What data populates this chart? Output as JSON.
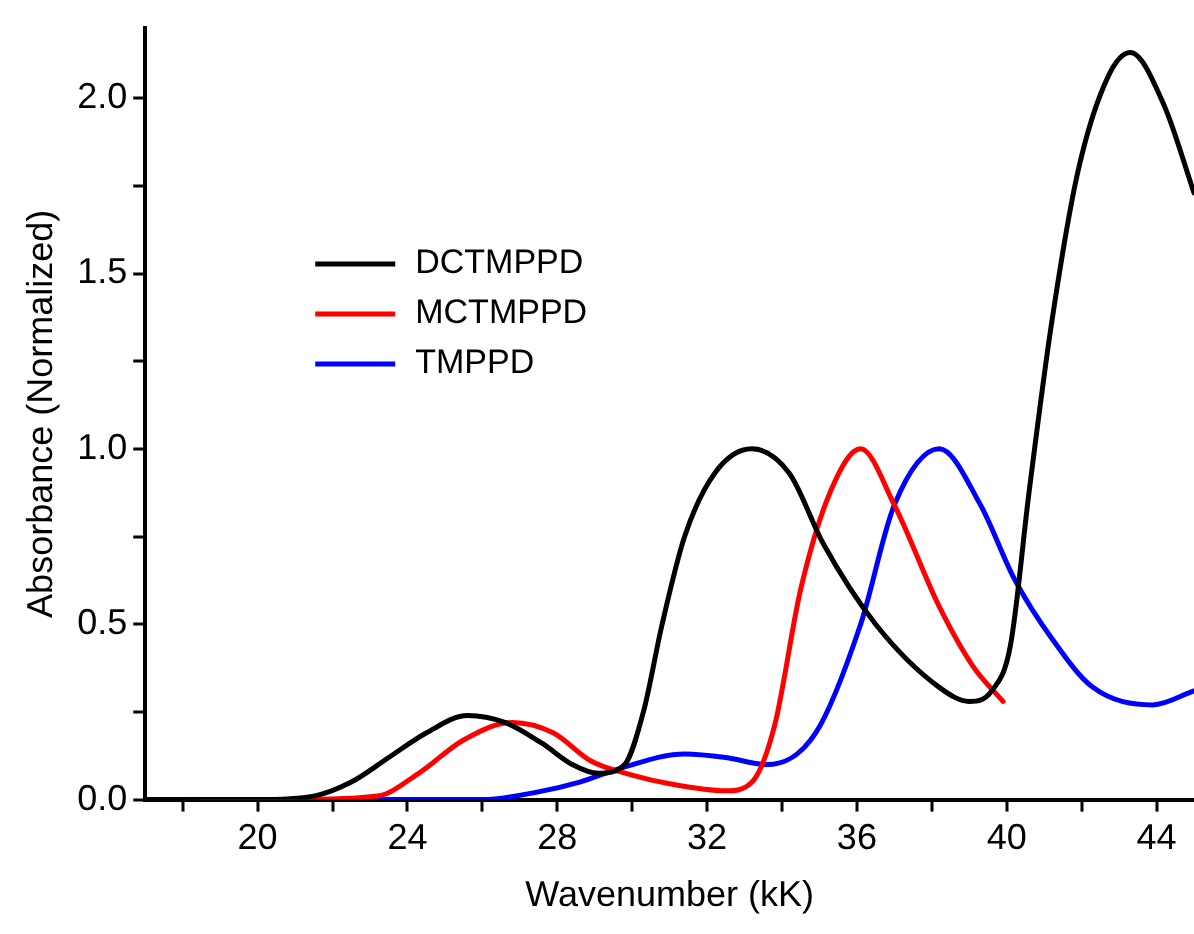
{
  "chart_data": {
    "type": "line",
    "xlabel": "Wavenumber (kK)",
    "ylabel": "Absorbance (Normalized)",
    "xlim": [
      17,
      45
    ],
    "ylim": [
      0,
      2.2
    ],
    "xticks": [
      {
        "value": 18,
        "label": null
      },
      20,
      {
        "value": 22,
        "label": null
      },
      24,
      {
        "value": 26,
        "label": null
      },
      28,
      {
        "value": 30,
        "label": null
      },
      32,
      {
        "value": 34,
        "label": null
      },
      36,
      {
        "value": 38,
        "label": null
      },
      40,
      {
        "value": 42,
        "label": null
      },
      44
    ],
    "yticks": [
      {
        "value": 0,
        "label": "0.0"
      },
      {
        "value": 0.25,
        "label": null
      },
      {
        "value": 0.5,
        "label": "0.5"
      },
      {
        "value": 0.75,
        "label": null
      },
      {
        "value": 1,
        "label": "1.0"
      },
      {
        "value": 1.25,
        "label": null
      },
      {
        "value": 1.5,
        "label": "1.5"
      },
      {
        "value": 1.75,
        "label": null
      },
      {
        "value": 2,
        "label": "2.0"
      }
    ],
    "legend": "top left",
    "grid": false,
    "marker": "none",
    "line_style": "solid",
    "series": [
      {
        "name": "DCTMPPD",
        "color": "#000000",
        "x": [
          17,
          20,
          21.5,
          22.5,
          23.5,
          24.5,
          25.6,
          26.6,
          27.6,
          28.4,
          29.1,
          29.8,
          30.3,
          30.8,
          31.4,
          32.2,
          33.2,
          34.2,
          35.1,
          36.5,
          38.2,
          39,
          39.6,
          40.1,
          40.6,
          41.2,
          41.9,
          42.7,
          43.3,
          44.2,
          45
        ],
        "values": [
          0,
          0,
          0.01,
          0.05,
          0.12,
          0.19,
          0.24,
          0.22,
          0.16,
          0.1,
          0.075,
          0.1,
          0.25,
          0.5,
          0.75,
          0.93,
          1,
          0.93,
          0.73,
          0.5,
          0.32,
          0.28,
          0.31,
          0.44,
          0.88,
          1.36,
          1.79,
          2.06,
          2.13,
          1.98,
          1.73
        ]
      },
      {
        "name": "MCTMPPD",
        "color": "#ff0000",
        "x": [
          18.5,
          21,
          23.2,
          24.3,
          25.5,
          26.8,
          27.9,
          28.9,
          30,
          31,
          32.5,
          33.2,
          33.8,
          34.5,
          35.3,
          36.1,
          37,
          38.2,
          39.1,
          39.9
        ],
        "values": [
          0,
          0,
          0.01,
          0.075,
          0.17,
          0.22,
          0.19,
          0.11,
          0.07,
          0.045,
          0.025,
          0.05,
          0.21,
          0.6,
          0.88,
          1,
          0.84,
          0.55,
          0.38,
          0.28
        ]
      },
      {
        "name": "TMPPD",
        "color": "#0000ff",
        "x": [
          18.1,
          22,
          26,
          27.4,
          28.6,
          29.7,
          31.4,
          32.5,
          33.6,
          34.9,
          36.1,
          37,
          38.2,
          39.3,
          40.2,
          41.2,
          42.3,
          43.9,
          45
        ],
        "values": [
          0,
          0,
          0,
          0.02,
          0.05,
          0.09,
          0.13,
          0.12,
          0.1,
          0.19,
          0.5,
          0.84,
          1,
          0.84,
          0.63,
          0.46,
          0.32,
          0.27,
          0.31
        ]
      }
    ]
  }
}
